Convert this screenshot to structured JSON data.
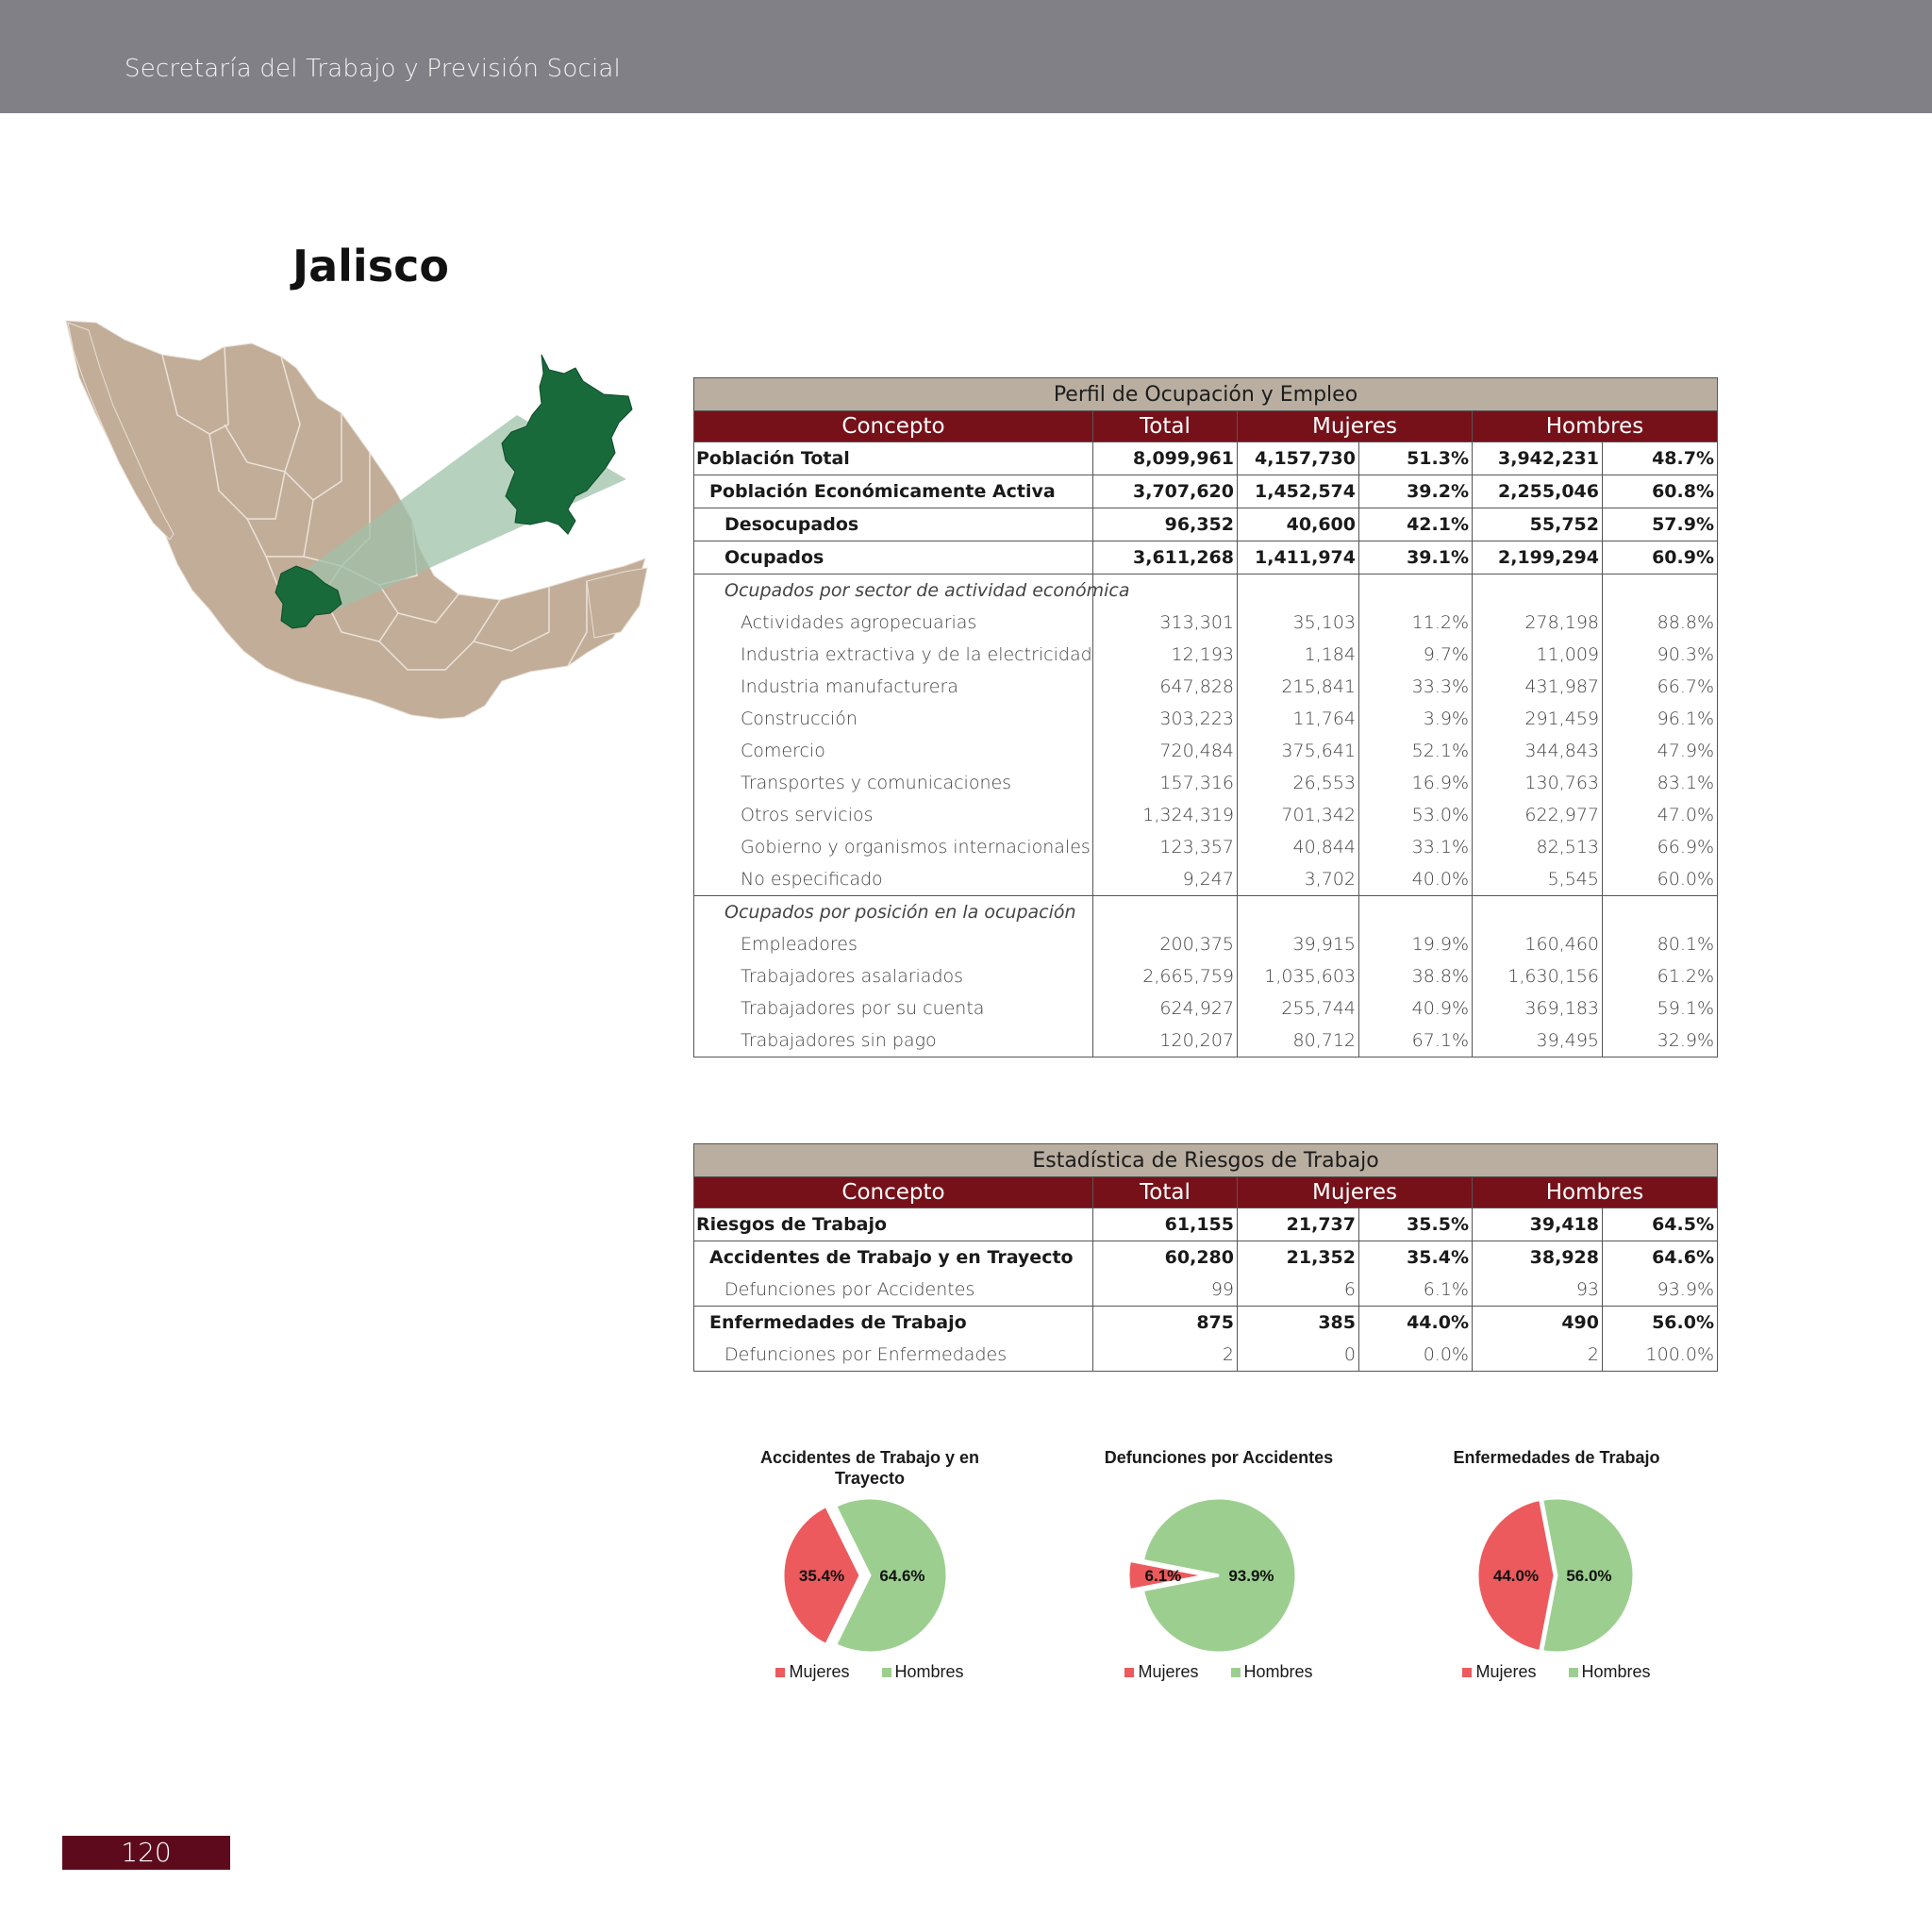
{
  "header": {
    "title": "Secretaría del Trabajo y Previsión Social"
  },
  "page": {
    "title": "Jalisco",
    "number": "120"
  },
  "colors": {
    "header_bar": "#818086",
    "table_header": "#76111a",
    "table_title": "#b9aea0",
    "map_land": "#c2ad98",
    "map_highlight": "#186a3b",
    "mujeres": "#ec5a5d",
    "hombres": "#9ccf8f"
  },
  "map": {
    "highlight": "Jalisco"
  },
  "perfil": {
    "title": "Perfil de Ocupación y Empleo",
    "headers": [
      "Concepto",
      "Total",
      "Mujeres",
      "Hombres"
    ],
    "rows": [
      {
        "label": "Población Total",
        "total": "8,099,961",
        "muj": "4,157,730",
        "mujp": "51.3%",
        "hom": "3,942,231",
        "homp": "48.7%"
      },
      {
        "label": "Población Económicamente Activa",
        "total": "3,707,620",
        "muj": "1,452,574",
        "mujp": "39.2%",
        "hom": "2,255,046",
        "homp": "60.8%"
      },
      {
        "label": "Desocupados",
        "total": "96,352",
        "muj": "40,600",
        "mujp": "42.1%",
        "hom": "55,752",
        "homp": "57.9%"
      },
      {
        "label": "Ocupados",
        "total": "3,611,268",
        "muj": "1,411,974",
        "mujp": "39.1%",
        "hom": "2,199,294",
        "homp": "60.9%"
      },
      {
        "label": "Ocupados por sector de actividad económica",
        "total": "",
        "muj": "",
        "mujp": "",
        "hom": "",
        "homp": ""
      },
      {
        "label": "Actividades agropecuarias",
        "total": "313,301",
        "muj": "35,103",
        "mujp": "11.2%",
        "hom": "278,198",
        "homp": "88.8%"
      },
      {
        "label": "Industria extractiva y de la electricidad",
        "total": "12,193",
        "muj": "1,184",
        "mujp": "9.7%",
        "hom": "11,009",
        "homp": "90.3%"
      },
      {
        "label": "Industria manufacturera",
        "total": "647,828",
        "muj": "215,841",
        "mujp": "33.3%",
        "hom": "431,987",
        "homp": "66.7%"
      },
      {
        "label": "Construcción",
        "total": "303,223",
        "muj": "11,764",
        "mujp": "3.9%",
        "hom": "291,459",
        "homp": "96.1%"
      },
      {
        "label": "Comercio",
        "total": "720,484",
        "muj": "375,641",
        "mujp": "52.1%",
        "hom": "344,843",
        "homp": "47.9%"
      },
      {
        "label": "Transportes y comunicaciones",
        "total": "157,316",
        "muj": "26,553",
        "mujp": "16.9%",
        "hom": "130,763",
        "homp": "83.1%"
      },
      {
        "label": "Otros servicios",
        "total": "1,324,319",
        "muj": "701,342",
        "mujp": "53.0%",
        "hom": "622,977",
        "homp": "47.0%"
      },
      {
        "label": "Gobierno y organismos internacionales",
        "total": "123,357",
        "muj": "40,844",
        "mujp": "33.1%",
        "hom": "82,513",
        "homp": "66.9%"
      },
      {
        "label": "No especificado",
        "total": "9,247",
        "muj": "3,702",
        "mujp": "40.0%",
        "hom": "5,545",
        "homp": "60.0%"
      },
      {
        "label": "Ocupados por posición en la ocupación",
        "total": "",
        "muj": "",
        "mujp": "",
        "hom": "",
        "homp": ""
      },
      {
        "label": "Empleadores",
        "total": "200,375",
        "muj": "39,915",
        "mujp": "19.9%",
        "hom": "160,460",
        "homp": "80.1%"
      },
      {
        "label": "Trabajadores asalariados",
        "total": "2,665,759",
        "muj": "1,035,603",
        "mujp": "38.8%",
        "hom": "1,630,156",
        "homp": "61.2%"
      },
      {
        "label": "Trabajadores por su cuenta",
        "total": "624,927",
        "muj": "255,744",
        "mujp": "40.9%",
        "hom": "369,183",
        "homp": "59.1%"
      },
      {
        "label": "Trabajadores sin pago",
        "total": "120,207",
        "muj": "80,712",
        "mujp": "67.1%",
        "hom": "39,495",
        "homp": "32.9%"
      }
    ]
  },
  "riesgos": {
    "title": "Estadística de Riesgos de Trabajo",
    "headers": [
      "Concepto",
      "Total",
      "Mujeres",
      "Hombres"
    ],
    "rows": [
      {
        "label": "Riesgos de Trabajo",
        "total": "61,155",
        "muj": "21,737",
        "mujp": "35.5%",
        "hom": "39,418",
        "homp": "64.5%"
      },
      {
        "label": "Accidentes de Trabajo y en Trayecto",
        "total": "60,280",
        "muj": "21,352",
        "mujp": "35.4%",
        "hom": "38,928",
        "homp": "64.6%"
      },
      {
        "label": "Defunciones por Accidentes",
        "total": "99",
        "muj": "6",
        "mujp": "6.1%",
        "hom": "93",
        "homp": "93.9%"
      },
      {
        "label": "Enfermedades de Trabajo",
        "total": "875",
        "muj": "385",
        "mujp": "44.0%",
        "hom": "490",
        "homp": "56.0%"
      },
      {
        "label": "Defunciones por Enfermedades",
        "total": "2",
        "muj": "0",
        "mujp": "0.0%",
        "hom": "2",
        "homp": "100.0%"
      }
    ]
  },
  "chart_data": [
    {
      "type": "pie",
      "title": "Accidentes de Trabajo y en Trayecto",
      "categories": [
        "Mujeres",
        "Hombres"
      ],
      "values": [
        35.4,
        64.6
      ],
      "labels": [
        "35.4%",
        "64.6%"
      ],
      "legend": "bottom"
    },
    {
      "type": "pie",
      "title": "Defunciones por Accidentes",
      "categories": [
        "Mujeres",
        "Hombres"
      ],
      "values": [
        6.1,
        93.9
      ],
      "labels": [
        "6.1%",
        "93.9%"
      ],
      "legend": "bottom"
    },
    {
      "type": "pie",
      "title": "Enfermedades de Trabajo",
      "categories": [
        "Mujeres",
        "Hombres"
      ],
      "values": [
        44.0,
        56.0
      ],
      "labels": [
        "44.0%",
        "56.0%"
      ],
      "legend": "bottom"
    }
  ]
}
